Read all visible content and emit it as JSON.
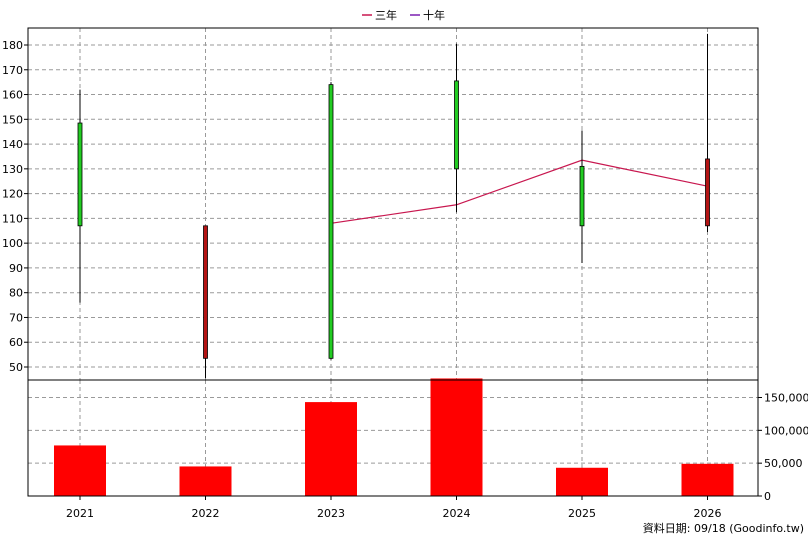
{
  "legend": [
    {
      "label": "三年",
      "color": "#c8174f"
    },
    {
      "label": "十年",
      "color": "#7a1fb0"
    }
  ],
  "footer": "資料日期: 09/18  (Goodinfo.tw)",
  "colors": {
    "up": "#22cc22",
    "down": "#b41414",
    "volume": "#ff0000",
    "ma3": "#c8174f"
  },
  "chart_data": [
    {
      "type": "candlestick",
      "categories": [
        "2021",
        "2022",
        "2023",
        "2024",
        "2025",
        "2026"
      ],
      "ylim": [
        45,
        185
      ],
      "yticks": [
        50,
        60,
        70,
        80,
        90,
        100,
        110,
        120,
        130,
        140,
        150,
        160,
        170,
        180
      ],
      "grid": true,
      "legend_position": "top",
      "candles": [
        {
          "year": "2021",
          "open": 107,
          "close": 148.5,
          "high": 162,
          "low": 76
        },
        {
          "year": "2022",
          "open": 107,
          "close": 53.5,
          "high": 107,
          "low": 45.5
        },
        {
          "year": "2023",
          "open": 53.5,
          "close": 164,
          "high": 165,
          "low": 53
        },
        {
          "year": "2024",
          "open": 130,
          "close": 165.5,
          "high": 180.5,
          "low": 112.5
        },
        {
          "year": "2025",
          "open": 107,
          "close": 131,
          "high": 145.5,
          "low": 92
        },
        {
          "year": "2026",
          "open": 134,
          "close": 107,
          "high": 184.5,
          "low": 104.5
        }
      ],
      "series": [
        {
          "name": "三年",
          "type": "line",
          "values": [
            null,
            null,
            108,
            115.5,
            133.5,
            123
          ]
        },
        {
          "name": "十年",
          "type": "line",
          "values": [
            null,
            null,
            null,
            null,
            null,
            null
          ]
        }
      ]
    },
    {
      "type": "bar",
      "categories": [
        "2021",
        "2022",
        "2023",
        "2024",
        "2025",
        "2026"
      ],
      "values": [
        77000,
        45000,
        143000,
        179000,
        43000,
        49000
      ],
      "ylim": [
        0,
        180000
      ],
      "yticks": [
        0,
        50000,
        100000,
        150000
      ],
      "ytick_labels": [
        "0",
        "50,000",
        "100,000",
        "150,000"
      ],
      "grid": true
    }
  ]
}
